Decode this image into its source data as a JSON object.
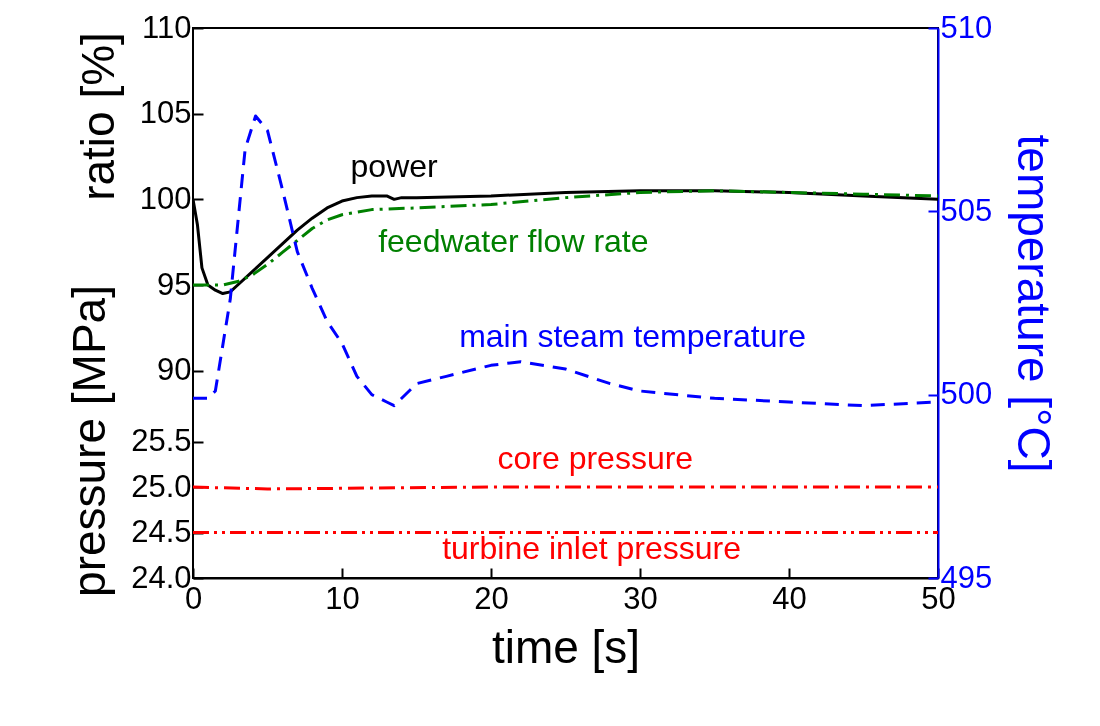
{
  "chart_data": {
    "type": "line",
    "xlabel": "time [s]",
    "ylabel": "ratio [%]",
    "y2label": "temperature [°C]",
    "y3label": "pressure [MPa]",
    "xlim": [
      0,
      50
    ],
    "xticks": [
      0,
      10,
      20,
      30,
      40,
      50
    ],
    "ylim": [
      77.9,
      110
    ],
    "yticks": [
      90,
      95,
      100,
      105,
      110
    ],
    "y2lim": [
      495,
      510
    ],
    "y2ticks": [
      495,
      500,
      505,
      510
    ],
    "y3lim": [
      24,
      30.05
    ],
    "y3ticks": [
      {
        "value": 24,
        "label": "24.0"
      },
      {
        "value": 24.5,
        "label": "24.5"
      },
      {
        "value": 25,
        "label": "25.0"
      },
      {
        "value": 25.5,
        "label": "25.5"
      }
    ],
    "grid": false,
    "series": [
      {
        "name": "power",
        "type": "line",
        "color": "#000000",
        "line_style": "solid",
        "x": [
          0,
          0.3,
          0.6,
          1,
          1.5,
          2,
          2.5,
          3,
          4,
          5,
          6,
          7,
          8,
          9,
          10,
          11,
          12,
          13,
          13.5,
          14,
          15,
          20,
          25,
          30,
          35,
          40,
          45,
          50
        ],
        "values": [
          100,
          98.5,
          96,
          95,
          94.7,
          94.5,
          94.6,
          95,
          95.8,
          96.6,
          97.4,
          98.2,
          98.9,
          99.5,
          99.9,
          100.1,
          100.2,
          100.2,
          100,
          100.1,
          100.1,
          100.2,
          100.4,
          100.5,
          100.5,
          100.4,
          100.2,
          100
        ]
      },
      {
        "name": "feedwater flow rate",
        "type": "line",
        "color": "#008000",
        "line_style": "dashdot",
        "x": [
          0,
          1,
          2,
          3,
          4,
          5,
          6,
          7,
          8,
          9,
          10,
          12,
          15,
          20,
          25,
          30,
          35,
          40,
          45,
          50
        ],
        "values": [
          95,
          95,
          95,
          95.2,
          95.6,
          96.2,
          96.9,
          97.6,
          98.3,
          98.8,
          99.1,
          99.4,
          99.5,
          99.7,
          100.1,
          100.4,
          100.5,
          100.4,
          100.3,
          100.2
        ]
      },
      {
        "name": "main steam temperature",
        "type": "line",
        "axis": "y2",
        "color": "#0000ff",
        "line_style": "dashed",
        "x": [
          0,
          1,
          1.5,
          2.5,
          3.5,
          4.2,
          5,
          6,
          7,
          8,
          9,
          10,
          11,
          12,
          13,
          13.5,
          15,
          17,
          20,
          22,
          25,
          28,
          30,
          35,
          40,
          45,
          50
        ],
        "values": [
          499.9,
          499.9,
          500.1,
          502.6,
          506.7,
          507.6,
          507.2,
          505.6,
          503.9,
          502.9,
          502,
          501.4,
          500.5,
          500,
          499.8,
          499.7,
          500.3,
          500.5,
          500.8,
          500.9,
          500.7,
          500.3,
          500.1,
          499.9,
          499.8,
          499.7,
          499.8
        ]
      },
      {
        "name": "core pressure",
        "type": "line",
        "axis": "y3",
        "color": "#ff0000",
        "line_style": "dashdot",
        "x": [
          0,
          5,
          20,
          50
        ],
        "values": [
          25,
          24.98,
          25,
          25
        ]
      },
      {
        "name": "turbine inlet pressure",
        "type": "line",
        "axis": "y3",
        "color": "#ff0000",
        "line_style": "dashdotdot",
        "x": [
          0,
          50
        ],
        "values": [
          24.5,
          24.5
        ]
      }
    ]
  }
}
